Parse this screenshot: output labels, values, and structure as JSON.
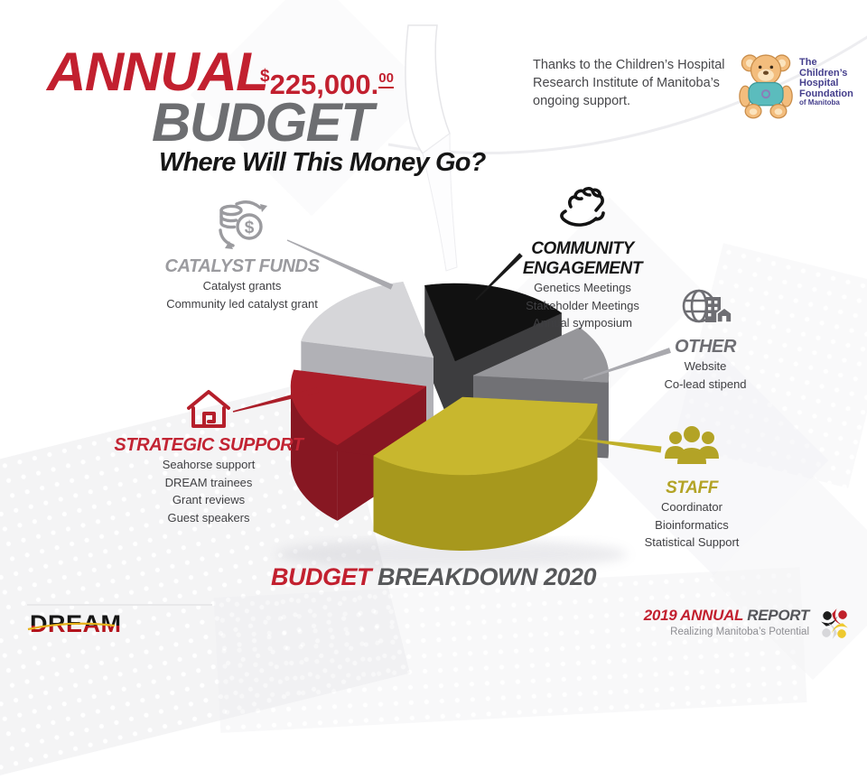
{
  "header": {
    "annual": "ANNUAL",
    "budget": "BUDGET",
    "amount_currency": "$",
    "amount_main": "225,000.",
    "amount_cents": "00",
    "tagline": "Where Will This Money Go?",
    "thanks": "Thanks to the Children’s Hospital Research Institute of Manitoba’s ongoing support."
  },
  "sponsor_logo": {
    "lines": [
      "The",
      "Children’s",
      "Hospital",
      "Foundation"
    ],
    "sub": "of Manitoba"
  },
  "chart_data": {
    "type": "pie",
    "style": "3d-exploded",
    "title": "BUDGET BREAKDOWN 2020",
    "total_budget": "$225,000.00",
    "start_angle_deg": 257,
    "order_clockwise": [
      "community",
      "other",
      "staff",
      "strategic",
      "catalyst"
    ],
    "slices": [
      {
        "id": "community",
        "label": "COMMUNITY ENGAGEMENT",
        "sublabels": [
          "Genetics Meetings",
          "Stakeholder Meetings",
          "Annual symposium"
        ],
        "percent": 18,
        "color": "#111111",
        "side_color": "#3d3d3f",
        "title_color": "#161616",
        "icon": "handshake-icon"
      },
      {
        "id": "other",
        "label": "OTHER",
        "sublabels": [
          "Website",
          "Co-lead stipend"
        ],
        "percent": 12,
        "color": "#96969a",
        "side_color": "#717175",
        "title_color": "#6e6e73",
        "icon": "globe-building-icon"
      },
      {
        "id": "staff",
        "label": "STAFF",
        "sublabels": [
          "Coordinator",
          "Bioinformatics",
          "Statistical Support"
        ],
        "percent": 35,
        "color": "#c8b72e",
        "side_color": "#a7981d",
        "title_color": "#b3a326",
        "icon": "people-icon"
      },
      {
        "id": "strategic",
        "label": "STRATEGIC SUPPORT",
        "sublabels": [
          "Seahorse support",
          "DREAM trainees",
          "Grant reviews",
          "Guest speakers"
        ],
        "percent": 17,
        "color": "#ab1e29",
        "side_color": "#871722",
        "title_color": "#c22433",
        "icon": "house-icon"
      },
      {
        "id": "catalyst",
        "label": "CATALYST FUNDS",
        "sublabels": [
          "Catalyst grants",
          "Community led catalyst grant"
        ],
        "percent": 18,
        "color": "#d6d6d9",
        "side_color": "#b1b1b6",
        "title_color": "#9b9b9f",
        "icon": "money-cycle-icon"
      }
    ]
  },
  "footer": {
    "breakdown_red": "BUDGET",
    "breakdown_rest": " BREAKDOWN 2020",
    "dream": "DREAM",
    "report_year": "2019 ANNUAL ",
    "report_word": "REPORT",
    "report_tagline": "Realizing Manitoba’s Potential"
  }
}
